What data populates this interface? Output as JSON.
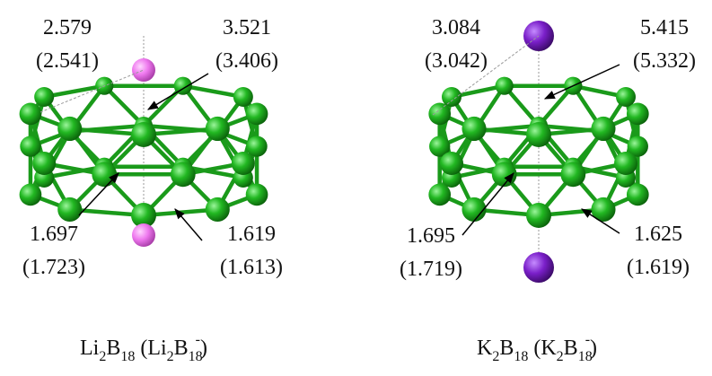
{
  "panels": [
    {
      "labels": [
        {
          "value": "2.579",
          "paren": "(2.541)"
        },
        {
          "value": "3.521",
          "paren": "(3.406)"
        },
        {
          "value": "1.697",
          "paren": "(1.723)"
        },
        {
          "value": "1.619",
          "paren": "(1.613)"
        }
      ],
      "formula": [
        "Li",
        "2",
        "B",
        "18",
        " (Li",
        "2",
        "B",
        "18",
        "-",
        ")"
      ]
    },
    {
      "labels": [
        {
          "value": "3.084",
          "paren": "(3.042)"
        },
        {
          "value": "5.415",
          "paren": "(5.332)"
        },
        {
          "value": "1.695",
          "paren": "(1.719)"
        },
        {
          "value": "1.625",
          "paren": "(1.619)"
        }
      ],
      "formula": [
        "K",
        "2",
        "B",
        "18",
        " (K",
        "2",
        "B",
        "18",
        "-",
        ")"
      ]
    }
  ]
}
